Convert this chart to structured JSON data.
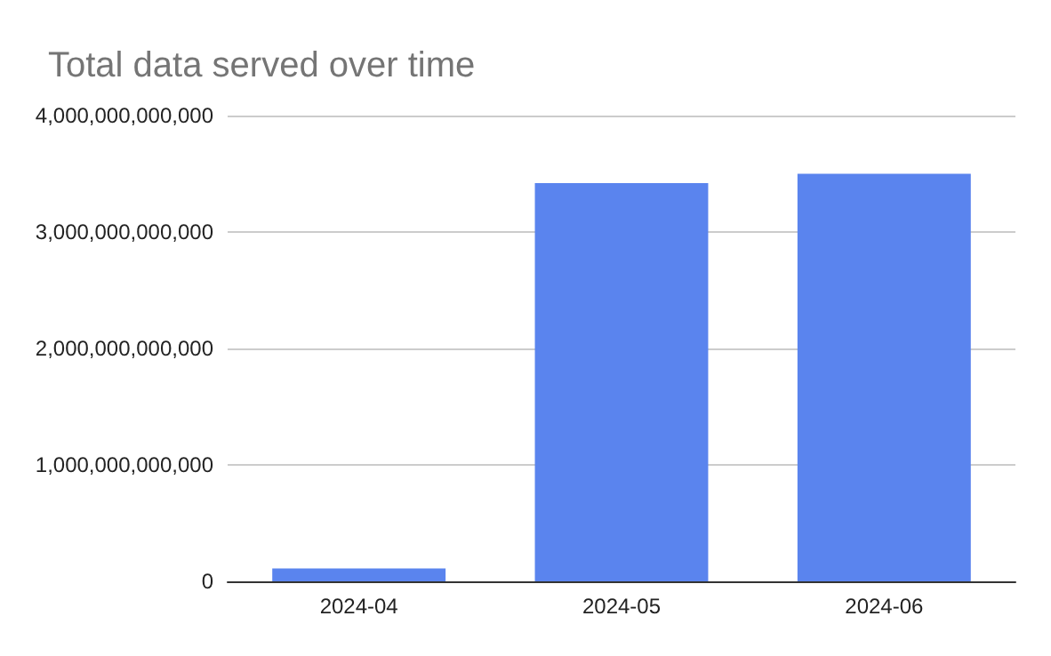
{
  "chart_data": {
    "type": "bar",
    "title": "Total data served over time",
    "categories": [
      "2024-04",
      "2024-05",
      "2024-06"
    ],
    "values": [
      110000000000,
      3420000000000,
      3500000000000
    ],
    "color": "#5a84ee",
    "ylim": [
      0,
      4000000000000
    ],
    "yticks": [
      0,
      {
        "value": 1000000000000,
        "label": "1,000,000,000,000"
      },
      {
        "value": 2000000000000,
        "label": "2,000,000,000,000"
      },
      {
        "value": 3000000000000,
        "label": "3,000,000,000,000"
      },
      {
        "value": 4000000000000,
        "label": "4,000,000,000,000"
      }
    ],
    "grid": "y"
  }
}
